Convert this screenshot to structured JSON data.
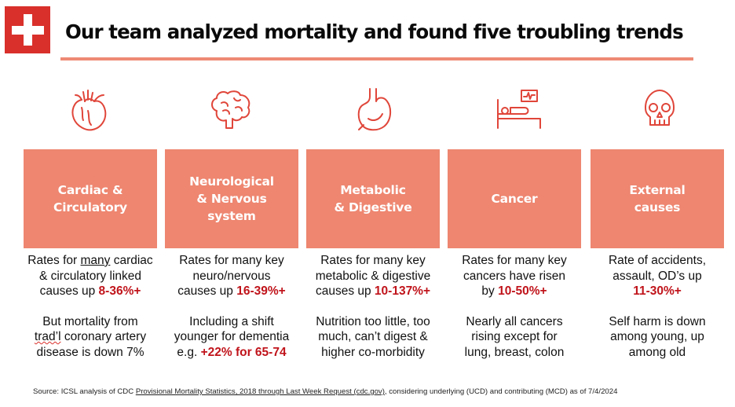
{
  "header": {
    "title": "Our team analyzed mortality and found five troubling trends"
  },
  "colors": {
    "brand_red": "#d9302b",
    "card_fill": "#ee8670",
    "highlight_text": "#c0141b",
    "icon_stroke": "#e0463a"
  },
  "icons": [
    "heart-icon",
    "brain-icon",
    "stomach-icon",
    "hospital-bed-icon",
    "skull-icon"
  ],
  "cards": [
    {
      "title": "Cardiac &\nCirculatory",
      "rates_a": "Rates for ",
      "rates_b": "many",
      "rates_c": " cardiac",
      "rates_line2": "& circulatory linked",
      "rates_line3": "causes up ",
      "rates_hl": "8-36%+",
      "note_line1": "But mortality from",
      "note_squig": "trad’l",
      "note_line2_rest": " coronary artery",
      "note_line3": "disease is down 7%"
    },
    {
      "title": "Neurological\n& Nervous\nsystem",
      "rates_line1": "Rates for many key",
      "rates_line2": "neuro/nervous",
      "rates_line3": "causes up ",
      "rates_hl": "16-39%+",
      "note_line1": "Including a shift",
      "note_line2": "younger for dementia",
      "note_line3": "e.g. ",
      "note_hl": "+22% for 65-74"
    },
    {
      "title": "Metabolic\n& Digestive",
      "rates_line1": "Rates for many key",
      "rates_line2": "metabolic & digestive",
      "rates_line3": "causes up ",
      "rates_hl": "10-137%+",
      "note_line1": "Nutrition too little, too",
      "note_line2": "much, can’t digest &",
      "note_line3": "higher co-morbidity"
    },
    {
      "title": "Cancer",
      "rates_line1": "Rates for many key",
      "rates_line2": "cancers have risen",
      "rates_line3": "by ",
      "rates_hl": "10-50%+",
      "note_line1": "Nearly all cancers",
      "note_line2": "rising except for",
      "note_line3": "lung, breast, colon"
    },
    {
      "title": "External\ncauses",
      "rates_line1": "Rate of accidents,",
      "rates_line2": "assault, OD’s up",
      "rates_hl": "11-30%+",
      "note_line1": "Self harm is down",
      "note_line2": "among young, up",
      "note_line3": "among old"
    }
  ],
  "footer": {
    "prefix": "Source: ICSL analysis of CDC ",
    "link": "Provisional Mortality Statistics, 2018 through Last Week Request (cdc.gov)",
    "suffix": ", considering underlying (UCD) and contributing (MCD) as of 7/4/2024"
  }
}
